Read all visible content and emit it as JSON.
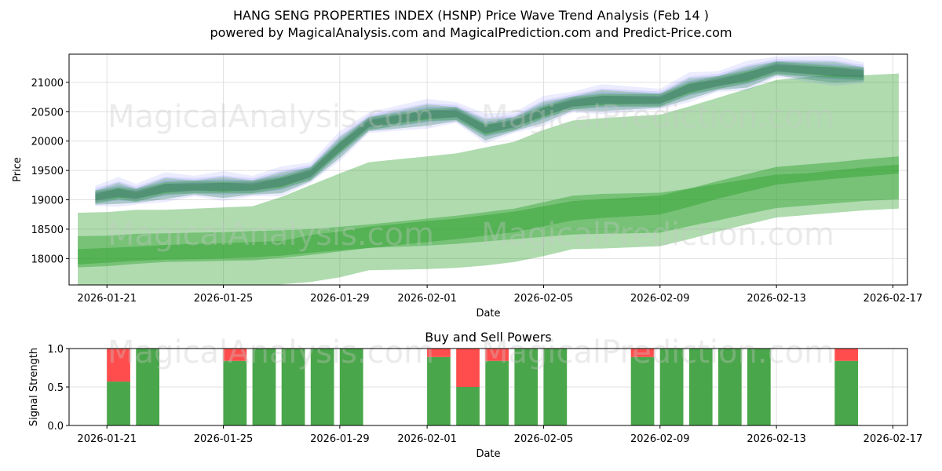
{
  "title_line1": "HANG SENG PROPERTIES INDEX (HSNP) Price Wave Trend Analysis (Feb 14 )",
  "title_line2": "powered by MagicalAnalysis.com and MagicalPrediction.com and Predict-Price.com",
  "watermarks": [
    "MagicalAnalysis.com",
    "MagicalPrediction.com"
  ],
  "colors": {
    "band_green": "#2ca02c",
    "band_blue": "#6666ff",
    "buy": "#4aa64a",
    "sell": "#ff4d4d",
    "grid": "#e0e0e0",
    "watermark": "#c8c8c8"
  },
  "chart_data": [
    {
      "type": "area",
      "title": "",
      "xlabel": "Date",
      "ylabel": "Price",
      "x_ticks": [
        "2026-01-21",
        "2026-01-25",
        "2026-01-29",
        "2026-02-01",
        "2026-02-05",
        "2026-02-09",
        "2026-02-13",
        "2026-02-17"
      ],
      "x_tick_day_offsets": [
        0,
        4,
        8,
        11,
        15,
        19,
        23,
        27
      ],
      "xlim_day_offsets": [
        -1.3,
        27.5
      ],
      "y_ticks": [
        18000,
        18500,
        19000,
        19500,
        20000,
        20500,
        21000
      ],
      "ylim": [
        17550,
        21480
      ],
      "grid": true,
      "price_series": {
        "x": [
          -0.4,
          0.4,
          1,
          2,
          3,
          4,
          5,
          6,
          7,
          8,
          9,
          11,
          12,
          13,
          14,
          15,
          16,
          17,
          19,
          20,
          21,
          22,
          23,
          25,
          26
        ],
        "y": [
          19050,
          19120,
          19080,
          19200,
          19220,
          19220,
          19220,
          19300,
          19450,
          19900,
          20300,
          20450,
          20470,
          20200,
          20300,
          20500,
          20650,
          20700,
          20700,
          20900,
          21000,
          21100,
          21250,
          21180,
          21150
        ]
      },
      "green_bands": [
        {
          "x": [
            -1,
            0,
            1,
            2,
            3,
            4,
            5,
            6,
            7,
            8,
            9,
            10,
            11,
            12,
            13,
            14,
            15,
            16,
            17,
            18,
            19,
            20,
            21,
            22,
            23,
            24,
            25,
            26,
            27.2
          ],
          "upper": [
            18780,
            18790,
            18830,
            18830,
            18850,
            18870,
            18890,
            19050,
            19250,
            19450,
            19640,
            19690,
            19740,
            19790,
            19890,
            19990,
            20190,
            20350,
            20390,
            20420,
            20450,
            20590,
            20740,
            20890,
            21040,
            21090,
            21130,
            21120,
            21150
          ],
          "lower": [
            17540,
            17520,
            17500,
            17500,
            17510,
            17520,
            17530,
            17560,
            17600,
            17680,
            17800,
            17810,
            17820,
            17840,
            17880,
            17940,
            18040,
            18160,
            18170,
            18190,
            18210,
            18330,
            18460,
            18580,
            18700,
            18740,
            18780,
            18820,
            18850
          ]
        },
        {
          "x": [
            -1,
            0,
            1,
            2,
            3,
            4,
            5,
            6,
            7,
            8,
            9,
            10,
            11,
            12,
            13,
            14,
            15,
            16,
            17,
            18,
            19,
            20,
            21,
            22,
            23,
            24,
            25,
            26,
            27.2
          ],
          "upper": [
            18380,
            18390,
            18420,
            18430,
            18440,
            18450,
            18470,
            18480,
            18500,
            18540,
            18580,
            18630,
            18680,
            18730,
            18790,
            18850,
            18960,
            19070,
            19100,
            19110,
            19120,
            19190,
            19270,
            19350,
            19430,
            19450,
            19500,
            19550,
            19600
          ],
          "lower": [
            17850,
            17870,
            17910,
            17940,
            17950,
            17960,
            17970,
            18010,
            18060,
            18120,
            18180,
            18200,
            18220,
            18250,
            18290,
            18330,
            18370,
            18410,
            18420,
            18430,
            18440,
            18550,
            18650,
            18760,
            18860,
            18900,
            18940,
            18980,
            19010
          ]
        },
        {
          "x": [
            -1,
            0,
            1,
            2,
            3,
            4,
            5,
            6,
            7,
            8,
            9,
            10,
            11,
            12,
            13,
            14,
            15,
            16,
            17,
            18,
            19,
            20,
            21,
            22,
            23,
            24,
            25,
            26,
            27.2
          ],
          "upper": [
            18160,
            18180,
            18200,
            18230,
            18250,
            18260,
            18280,
            18300,
            18400,
            18460,
            18540,
            18590,
            18640,
            18680,
            18740,
            18800,
            18890,
            18980,
            19010,
            19040,
            19070,
            19190,
            19320,
            19440,
            19560,
            19600,
            19640,
            19690,
            19740
          ],
          "lower": [
            17900,
            17930,
            17960,
            17980,
            17990,
            18000,
            18020,
            18050,
            18100,
            18140,
            18180,
            18230,
            18280,
            18330,
            18390,
            18450,
            18550,
            18650,
            18690,
            18720,
            18750,
            18880,
            19020,
            19140,
            19260,
            19310,
            19360,
            19400,
            19450
          ]
        }
      ],
      "series": [
        {
          "name": "Price",
          "y": []
        }
      ]
    },
    {
      "type": "bar",
      "title": "Buy and Sell Powers",
      "xlabel": "Date",
      "ylabel": "Signal Strength",
      "x_ticks": [
        "2026-01-21",
        "2026-01-25",
        "2026-01-29",
        "2026-02-01",
        "2026-02-05",
        "2026-02-09",
        "2026-02-13",
        "2026-02-17"
      ],
      "x_tick_day_offsets": [
        0,
        4,
        8,
        11,
        15,
        19,
        23,
        27
      ],
      "xlim_day_offsets": [
        -1.3,
        27.5
      ],
      "y_ticks": [
        "0.0",
        "0.5",
        "1.0"
      ],
      "ylim": [
        0,
        1
      ],
      "grid": true,
      "series": [
        {
          "name": "Buy",
          "day_offsets": [
            0.4,
            1.4,
            4.4,
            5.4,
            6.4,
            7.4,
            8.4,
            11.4,
            12.4,
            13.4,
            14.4,
            15.4,
            18.4,
            19.4,
            20.4,
            21.4,
            22.4,
            25.4
          ],
          "values": [
            0.57,
            1.0,
            0.84,
            1.0,
            1.0,
            1.0,
            1.0,
            0.89,
            0.5,
            0.84,
            1.0,
            1.0,
            0.89,
            1.0,
            1.0,
            1.0,
            1.0,
            0.84
          ]
        },
        {
          "name": "Sell",
          "day_offsets": [
            0.4,
            1.4,
            4.4,
            5.4,
            6.4,
            7.4,
            8.4,
            11.4,
            12.4,
            13.4,
            14.4,
            15.4,
            18.4,
            19.4,
            20.4,
            21.4,
            22.4,
            25.4
          ],
          "values": [
            0.43,
            0.0,
            0.16,
            0.0,
            0.0,
            0.0,
            0.0,
            0.11,
            0.5,
            0.16,
            0.0,
            0.0,
            0.11,
            0.0,
            0.0,
            0.0,
            0.0,
            0.16
          ]
        }
      ]
    }
  ]
}
